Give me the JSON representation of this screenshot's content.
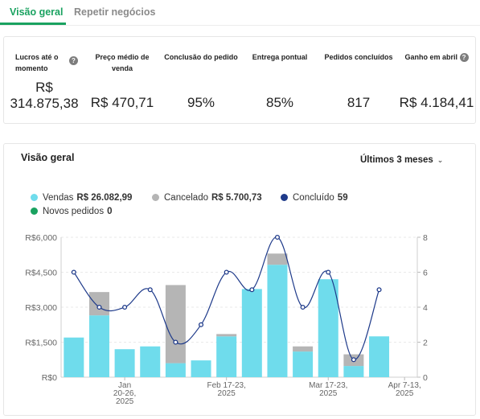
{
  "tabs": [
    {
      "label": "Visão geral",
      "active": true
    },
    {
      "label": "Repetir negócios",
      "active": false
    }
  ],
  "stats": [
    {
      "label": "Lucros até o momento",
      "value": "R$ 314.875,38",
      "help": true
    },
    {
      "label": "Preço médio de venda",
      "value": "R$ 470,71",
      "help": false
    },
    {
      "label": "Conclusão do pedido",
      "value": "95%",
      "help": false
    },
    {
      "label": "Entrega pontual",
      "value": "85%",
      "help": false
    },
    {
      "label": "Pedidos concluídos",
      "value": "817",
      "help": false
    },
    {
      "label": "Ganho em abril",
      "value": "R$ 4.184,41",
      "help": true
    }
  ],
  "overview": {
    "title": "Visão geral",
    "period": "Últimos 3 meses"
  },
  "legend": [
    {
      "label": "Vendas",
      "value": "R$ 26.082,99",
      "color": "#6fdcec"
    },
    {
      "label": "Cancelado",
      "value": "R$ 5.700,73",
      "color": "#b5b5b5"
    },
    {
      "label": "Concluído",
      "value": "59",
      "color": "#1e3a8a"
    },
    {
      "label": "Novos pedidos",
      "value": "0",
      "color": "#1aa260"
    }
  ],
  "chart_data": {
    "type": "bar",
    "y_left_ticks": [
      "R$6,000",
      "R$4,500",
      "R$3,000",
      "R$1,500",
      "R$0"
    ],
    "y_left_range": [
      0,
      6000
    ],
    "y_right_ticks": [
      "8",
      "6",
      "4",
      "2",
      "0"
    ],
    "y_right_range": [
      0,
      8
    ],
    "x_tick_labels": [
      {
        "lines": [
          "Jan",
          "20-26,",
          "2025"
        ],
        "index": 2
      },
      {
        "lines": [
          "Feb 17-23,",
          "2025"
        ],
        "index": 6
      },
      {
        "lines": [
          "Mar 17-23,",
          "2025"
        ],
        "index": 10
      },
      {
        "lines": [
          "Apr 7-13,",
          "2025"
        ],
        "index": 13
      }
    ],
    "series": [
      {
        "name": "Vendas",
        "color": "#6fdcec",
        "values": [
          1700,
          2650,
          1200,
          1320,
          600,
          720,
          1750,
          3780,
          4820,
          1100,
          4200,
          480,
          1750,
          0
        ]
      },
      {
        "name": "Cancelado",
        "color": "#b5b5b5",
        "values": [
          0,
          1000,
          0,
          0,
          3350,
          0,
          100,
          0,
          480,
          220,
          0,
          500,
          0,
          0
        ]
      },
      {
        "name": "Concluído",
        "color": "#1e3a8a",
        "values": [
          6,
          4,
          4,
          5,
          2,
          3,
          6,
          5,
          8,
          4,
          6,
          1,
          5,
          null
        ]
      }
    ],
    "grid": true
  }
}
